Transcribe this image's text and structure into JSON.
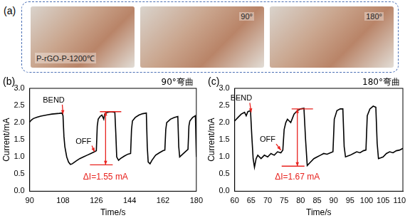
{
  "panel_a": {
    "label": "(a)",
    "photos": [
      {
        "caption": "P-rGO-P-1200℃"
      },
      {
        "caption": "90°"
      },
      {
        "caption": "180°"
      }
    ]
  },
  "chart_data": [
    {
      "type": "line",
      "panel_label": "(b)",
      "title": "90°弯曲",
      "x_label": "Time/s",
      "y_label": "Current/mA",
      "color": "#000000",
      "xlim": [
        90,
        180
      ],
      "xticks": [
        90,
        108,
        126,
        144,
        162,
        180
      ],
      "ylim": [
        0,
        3
      ],
      "yticks": [
        {
          "value": 0,
          "label": "0.0"
        },
        0.5,
        {
          "value": 1,
          "label": "1.0"
        },
        1.5,
        {
          "value": 2,
          "label": "2.0"
        },
        2.5,
        {
          "value": 3,
          "label": "3.0"
        }
      ],
      "grid": false,
      "x": [
        90,
        91,
        92,
        94,
        96,
        98,
        100,
        102,
        104,
        106,
        107.5,
        108,
        108.5,
        109,
        110,
        111,
        112,
        113,
        115,
        117,
        119,
        121,
        123,
        125,
        126,
        126.5,
        127,
        128,
        129,
        130,
        130.5,
        132,
        134,
        136,
        136.5,
        137,
        138,
        139,
        141,
        143,
        144.5,
        145,
        145.5,
        147,
        149,
        151,
        153,
        153.5,
        154,
        155,
        156,
        158,
        160,
        162,
        163,
        163.5,
        164,
        166,
        168,
        170,
        170.5,
        171,
        172,
        174,
        175.5,
        176,
        176.5,
        178,
        179.5,
        180
      ],
      "values": [
        2.02,
        2.08,
        2.12,
        2.16,
        2.19,
        2.21,
        2.23,
        2.25,
        2.26,
        2.27,
        2.28,
        2.2,
        1.6,
        1.3,
        1.0,
        0.85,
        0.78,
        0.8,
        0.88,
        0.95,
        1.0,
        1.05,
        1.1,
        1.15,
        1.18,
        1.9,
        2.1,
        2.18,
        2.22,
        2.1,
        2.25,
        2.3,
        2.32,
        2.3,
        1.7,
        1.0,
        0.9,
        0.95,
        1.02,
        1.08,
        1.1,
        1.8,
        2.05,
        2.15,
        2.22,
        2.26,
        2.28,
        1.3,
        0.85,
        0.8,
        0.9,
        1.05,
        1.12,
        1.18,
        1.2,
        1.8,
        2.0,
        2.1,
        2.15,
        2.18,
        1.3,
        1.0,
        1.05,
        1.15,
        1.22,
        1.9,
        2.05,
        2.15,
        2.2,
        1.0
      ],
      "annotations": [
        {
          "text": "BEND",
          "x": 103,
          "y": 2.65,
          "arrow_to": [
            108,
            2.25
          ]
        },
        {
          "text": "OFF",
          "x": 119,
          "y": 1.45,
          "arrow_to": [
            125,
            1.15
          ]
        },
        {
          "text": "ΔI=1.55 mA",
          "x": 131,
          "y": 0.4,
          "range": [
            0.77,
            2.32
          ]
        }
      ]
    },
    {
      "type": "line",
      "panel_label": "(c)",
      "title": "180°弯曲",
      "x_label": "Time/s",
      "y_label": "Current/mA",
      "color": "#000000",
      "xlim": [
        60,
        111
      ],
      "xticks": [
        60,
        65,
        70,
        75,
        80,
        85,
        90,
        95,
        100,
        105,
        110
      ],
      "ylim": [
        0,
        3
      ],
      "yticks": [
        {
          "value": 0,
          "label": "0.0"
        },
        0.5,
        {
          "value": 1,
          "label": "1.0"
        },
        1.5,
        {
          "value": 2,
          "label": "2.0"
        },
        2.5,
        {
          "value": 3,
          "label": "3.0"
        }
      ],
      "grid": false,
      "x": [
        60,
        61,
        62,
        63,
        63.5,
        64,
        64.8,
        65.2,
        65.6,
        66,
        66.5,
        67,
        68,
        69,
        70,
        71,
        72,
        73,
        74,
        74.6,
        75,
        75.5,
        76,
        77,
        78,
        79,
        80,
        81,
        81.5,
        82,
        83,
        84,
        85,
        86,
        87,
        88,
        89,
        89.8,
        90.2,
        91,
        92,
        92.8,
        93.2,
        93.6,
        95,
        96,
        97,
        98,
        99,
        99.8,
        100.2,
        101,
        102,
        102.8,
        103.2,
        103.6,
        105,
        106,
        107,
        108,
        109,
        110,
        111
      ],
      "values": [
        2.05,
        2.15,
        2.25,
        2.3,
        2.2,
        2.32,
        2.35,
        1.6,
        0.95,
        0.7,
        0.95,
        1.05,
        0.95,
        1.05,
        1.0,
        1.1,
        1.05,
        1.15,
        1.12,
        1.2,
        1.8,
        2.0,
        2.1,
        2.0,
        2.25,
        2.35,
        2.4,
        2.42,
        1.5,
        0.75,
        0.85,
        0.95,
        1.0,
        1.05,
        1.1,
        1.08,
        1.12,
        1.15,
        2.1,
        2.35,
        2.4,
        2.4,
        1.3,
        1.0,
        1.05,
        1.1,
        1.15,
        1.12,
        1.18,
        1.2,
        2.2,
        2.4,
        2.48,
        2.45,
        1.4,
        0.95,
        1.0,
        1.1,
        1.15,
        1.12,
        1.18,
        1.2,
        1.25
      ],
      "annotations": [
        {
          "text": "BEND",
          "x": 62,
          "y": 2.7,
          "arrow_to": [
            65,
            2.3
          ]
        },
        {
          "text": "OFF",
          "x": 70,
          "y": 1.5,
          "arrow_to": [
            74,
            1.2
          ]
        },
        {
          "text": "ΔI=1.67 mA",
          "x": 79,
          "y": 0.4,
          "range": [
            0.73,
            2.4
          ]
        }
      ]
    }
  ]
}
